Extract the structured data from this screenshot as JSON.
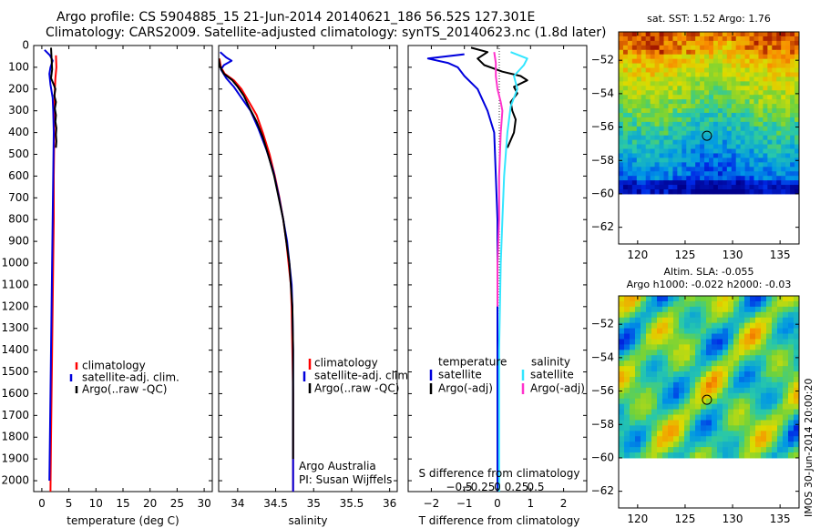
{
  "header": {
    "title_line1": "Argo profile: CS 5904885_15 21-Jun-2014 20140621_186 56.52S 127.301E",
    "title_line2": "Climatology: CARS2009. Satellite-adjusted climatology: synTS_20140623.nc (1.8d later)"
  },
  "colors": {
    "climatology": "#ff0000",
    "satellite": "#0000dd",
    "argo": "#000000",
    "salinity_satellite": "#33e6ff",
    "salinity_argo": "#ff33cc"
  },
  "chart_data": [
    {
      "id": "temperature",
      "type": "line",
      "xlabel": "temperature (deg C)",
      "xlim": [
        -1.5,
        31.5
      ],
      "xticks": [
        0,
        5,
        10,
        15,
        20,
        25,
        30
      ],
      "ylim": [
        2050,
        0
      ],
      "yticks": [
        0,
        100,
        200,
        300,
        400,
        500,
        600,
        700,
        800,
        900,
        1000,
        1100,
        1200,
        1300,
        1400,
        1500,
        1600,
        1700,
        1800,
        1900,
        2000
      ],
      "legend": [
        "climatology",
        "satellite-adj. clim.",
        "Argo(..raw -QC)"
      ],
      "series": [
        {
          "name": "climatology",
          "color": "#ff0000",
          "points": [
            [
              2.6,
              45
            ],
            [
              2.7,
              100
            ],
            [
              2.5,
              150
            ],
            [
              2.4,
              200
            ],
            [
              2.3,
              300
            ],
            [
              2.3,
              400
            ],
            [
              2.2,
              600
            ],
            [
              2.2,
              800
            ],
            [
              2.1,
              1000
            ],
            [
              2.0,
              1200
            ],
            [
              1.9,
              1400
            ],
            [
              1.8,
              1600
            ],
            [
              1.7,
              1800
            ],
            [
              1.6,
              2050
            ]
          ]
        },
        {
          "name": "satellite-adj. clim.",
          "color": "#0000dd",
          "points": [
            [
              0.5,
              20
            ],
            [
              1.5,
              45
            ],
            [
              2.0,
              70
            ],
            [
              1.6,
              100
            ],
            [
              1.4,
              130
            ],
            [
              1.6,
              180
            ],
            [
              2.0,
              240
            ],
            [
              2.1,
              300
            ],
            [
              2.2,
              400
            ],
            [
              2.1,
              600
            ],
            [
              2.0,
              800
            ],
            [
              1.9,
              1000
            ],
            [
              1.8,
              1200
            ],
            [
              1.7,
              1400
            ],
            [
              1.6,
              1600
            ],
            [
              1.5,
              1800
            ],
            [
              1.4,
              2000
            ]
          ]
        },
        {
          "name": "Argo(..raw -QC)",
          "color": "#000000",
          "points": [
            [
              1.7,
              10
            ],
            [
              1.8,
              60
            ],
            [
              1.9,
              110
            ],
            [
              1.7,
              150
            ],
            [
              2.2,
              180
            ],
            [
              2.5,
              200
            ],
            [
              2.3,
              230
            ],
            [
              2.6,
              260
            ],
            [
              2.4,
              290
            ],
            [
              2.6,
              320
            ],
            [
              2.5,
              350
            ],
            [
              2.7,
              380
            ],
            [
              2.6,
              410
            ],
            [
              2.7,
              440
            ],
            [
              2.6,
              470
            ]
          ]
        }
      ]
    },
    {
      "id": "salinity",
      "type": "line",
      "xlabel": "salinity",
      "xlim": [
        33.75,
        36.1
      ],
      "xticks": [
        34,
        34.5,
        35,
        35.5,
        36
      ],
      "xtick_labels": [
        "34",
        "34.5",
        "35",
        "35.5",
        "36"
      ],
      "ylim": [
        2050,
        0
      ],
      "legend": [
        "climatology",
        "satellite-adj. clim.",
        "Argo(..raw -QC)"
      ],
      "annotation": [
        "Argo Australia",
        "PI: Susan Wijffels"
      ],
      "series": [
        {
          "name": "climatology",
          "color": "#ff0000",
          "points": [
            [
              33.76,
              60
            ],
            [
              33.78,
              100
            ],
            [
              33.83,
              130
            ],
            [
              33.95,
              160
            ],
            [
              34.05,
              200
            ],
            [
              34.15,
              260
            ],
            [
              34.25,
              320
            ],
            [
              34.33,
              400
            ],
            [
              34.42,
              500
            ],
            [
              34.49,
              600
            ],
            [
              34.55,
              700
            ],
            [
              34.6,
              800
            ],
            [
              34.64,
              900
            ],
            [
              34.67,
              1000
            ],
            [
              34.7,
              1100
            ],
            [
              34.71,
              1200
            ],
            [
              34.72,
              1400
            ],
            [
              34.73,
              1600
            ],
            [
              34.73,
              1800
            ],
            [
              34.73,
              2050
            ]
          ]
        },
        {
          "name": "satellite-adj. clim.",
          "color": "#0000dd",
          "points": [
            [
              33.77,
              30
            ],
            [
              33.85,
              55
            ],
            [
              33.92,
              70
            ],
            [
              33.82,
              90
            ],
            [
              33.78,
              110
            ],
            [
              33.85,
              150
            ],
            [
              33.95,
              190
            ],
            [
              34.05,
              240
            ],
            [
              34.17,
              300
            ],
            [
              34.27,
              380
            ],
            [
              34.38,
              480
            ],
            [
              34.47,
              580
            ],
            [
              34.54,
              690
            ],
            [
              34.6,
              800
            ],
            [
              34.65,
              900
            ],
            [
              34.68,
              1000
            ],
            [
              34.71,
              1100
            ],
            [
              34.72,
              1200
            ],
            [
              34.73,
              1400
            ],
            [
              34.73,
              1700
            ],
            [
              34.73,
              2050
            ]
          ]
        },
        {
          "name": "Argo(..raw -QC)",
          "color": "#000000",
          "points": [
            [
              33.75,
              60
            ],
            [
              33.77,
              100
            ],
            [
              33.82,
              130
            ],
            [
              33.93,
              160
            ],
            [
              34.0,
              190
            ],
            [
              34.08,
              230
            ],
            [
              34.16,
              290
            ],
            [
              34.25,
              350
            ],
            [
              34.33,
              420
            ],
            [
              34.4,
              500
            ],
            [
              34.48,
              600
            ],
            [
              34.54,
              700
            ],
            [
              34.6,
              800
            ],
            [
              34.64,
              900
            ],
            [
              34.68,
              1000
            ],
            [
              34.7,
              1100
            ],
            [
              34.72,
              1200
            ],
            [
              34.73,
              1400
            ],
            [
              34.73,
              1700
            ],
            [
              34.73,
              1900
            ]
          ]
        }
      ]
    },
    {
      "id": "differences",
      "type": "line",
      "xlabel": "T difference from climatology",
      "xlabel_top": "S difference from climatology",
      "xlim": [
        -2.7,
        2.7
      ],
      "xticks": [
        -2,
        -1,
        0,
        1,
        2
      ],
      "xtick_labels": [
        "−2",
        "−1",
        "0",
        "1",
        "2"
      ],
      "sticks": [
        -0.5,
        -0.25,
        0,
        0.25,
        0.5
      ],
      "stick_labels": [
        "−0.5",
        "−0.25",
        "0",
        "0.25",
        "0.5"
      ],
      "ylim": [
        2050,
        0
      ],
      "legend_temperature": {
        "title": "temperature",
        "items": [
          "satellite",
          "Argo(-adj)"
        ]
      },
      "legend_salinity": {
        "title": "salinity",
        "items": [
          "satellite",
          "Argo(-adj)"
        ]
      },
      "series": [
        {
          "name": "temperature satellite",
          "color": "#0000dd",
          "points": [
            [
              -1.0,
              40
            ],
            [
              -2.1,
              60
            ],
            [
              -1.5,
              80
            ],
            [
              -1.2,
              100
            ],
            [
              -1.0,
              140
            ],
            [
              -0.6,
              200
            ],
            [
              -0.3,
              300
            ],
            [
              -0.1,
              400
            ],
            [
              -0.05,
              600
            ],
            [
              0,
              800
            ],
            [
              0,
              2050
            ]
          ]
        },
        {
          "name": "temperature Argo(-adj)",
          "color": "#000000",
          "points": [
            [
              -0.8,
              10
            ],
            [
              -0.3,
              30
            ],
            [
              -0.6,
              60
            ],
            [
              -0.4,
              90
            ],
            [
              0.15,
              120
            ],
            [
              0.7,
              140
            ],
            [
              0.9,
              160
            ],
            [
              0.5,
              190
            ],
            [
              0.6,
              220
            ],
            [
              0.4,
              260
            ],
            [
              0.45,
              300
            ],
            [
              0.55,
              340
            ],
            [
              0.5,
              400
            ],
            [
              0.3,
              470
            ]
          ]
        },
        {
          "name": "salinity satellite",
          "color": "#33e6ff",
          "points": [
            [
              0.4,
              30
            ],
            [
              0.9,
              60
            ],
            [
              0.8,
              90
            ],
            [
              0.5,
              140
            ],
            [
              0.6,
              200
            ],
            [
              0.4,
              280
            ],
            [
              0.3,
              400
            ],
            [
              0.2,
              600
            ],
            [
              0.15,
              800
            ],
            [
              0.1,
              1000
            ],
            [
              0.05,
              1400
            ],
            [
              0.05,
              2050
            ]
          ]
        },
        {
          "name": "salinity Argo(-adj)",
          "color": "#ff33cc",
          "points": [
            [
              -0.1,
              30
            ],
            [
              -0.05,
              80
            ],
            [
              -0.05,
              140
            ],
            [
              0,
              200
            ],
            [
              0.1,
              260
            ],
            [
              0.15,
              300
            ],
            [
              0.1,
              400
            ],
            [
              0.05,
              600
            ],
            [
              0.05,
              800
            ],
            [
              0,
              1000
            ],
            [
              0,
              1200
            ]
          ]
        }
      ]
    },
    {
      "id": "sst_map",
      "type": "heatmap",
      "title": "sat. SST: 1.52 Argo: 1.76",
      "xlim": [
        118,
        137
      ],
      "ylim": [
        -63,
        -50.3
      ],
      "xticks": [
        120,
        125,
        130,
        135
      ],
      "yticks": [
        -52,
        -54,
        -56,
        -58,
        -60,
        -62
      ],
      "ytick_labels": [
        "−52",
        "−54",
        "−56",
        "−58",
        "−60",
        "−62"
      ],
      "data_extent_lat": [
        -60,
        -50.3
      ],
      "marker": {
        "lon": 127.3,
        "lat": -56.52
      }
    },
    {
      "id": "sla_map",
      "type": "heatmap",
      "title_line1": "Altim. SLA: -0.055",
      "title_line2": "Argo h1000: -0.022 h2000: -0.03",
      "xlim": [
        118,
        137
      ],
      "ylim": [
        -63,
        -50.3
      ],
      "xticks": [
        120,
        125,
        130,
        135
      ],
      "yticks": [
        -52,
        -54,
        -56,
        -58,
        -60,
        -62
      ],
      "ytick_labels": [
        "−52",
        "−54",
        "−56",
        "−58",
        "−60",
        "−62"
      ],
      "data_extent_lat": [
        -60,
        -50.3
      ],
      "marker": {
        "lon": 127.3,
        "lat": -56.52
      },
      "side_label": "IMOS 30-Jun-2014 20:00:20"
    }
  ]
}
